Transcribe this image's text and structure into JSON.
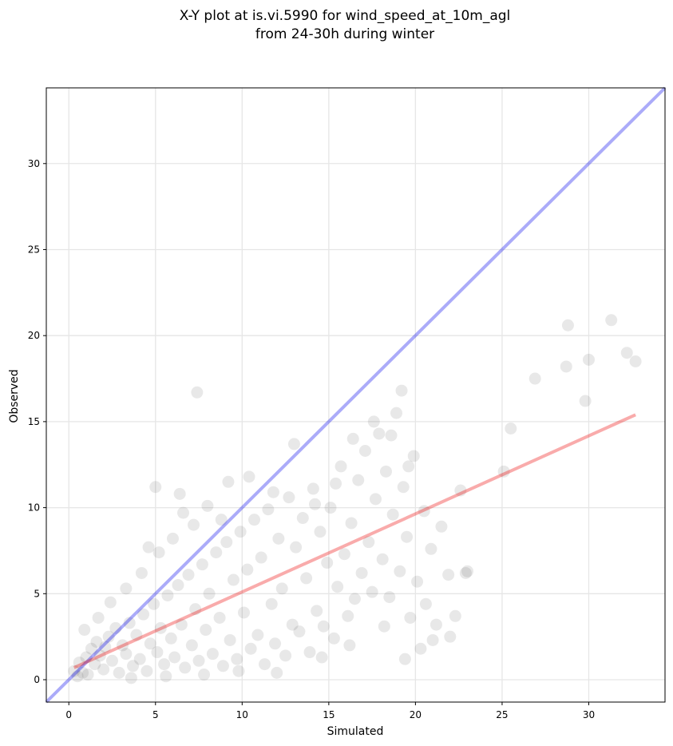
{
  "chart_data": {
    "type": "scatter",
    "title": "X-Y plot at is.vi.5990 for wind_speed_at_10m_agl",
    "subtitle": "from 24-30h during winter",
    "xlabel": "Simulated",
    "ylabel": "Observed",
    "xlim": [
      -1.3,
      34.4
    ],
    "ylim": [
      -1.3,
      34.4
    ],
    "xticks": [
      0,
      5,
      10,
      15,
      20,
      25,
      30
    ],
    "yticks": [
      0,
      5,
      10,
      15,
      20,
      25,
      30
    ],
    "grid": true,
    "point_color": "#000000",
    "point_opacity": 0.09,
    "identity_line": {
      "color": "#0000ee",
      "opacity": 0.33,
      "from": [
        -1.3,
        -1.3
      ],
      "to": [
        34.4,
        34.4
      ]
    },
    "fit_line": {
      "color": "#ee0000",
      "opacity": 0.33,
      "from": [
        0.3,
        0.7
      ],
      "to": [
        32.7,
        15.4
      ]
    },
    "points": [
      [
        0.3,
        0.5
      ],
      [
        0.5,
        0.2
      ],
      [
        0.6,
        1.0
      ],
      [
        0.8,
        0.4
      ],
      [
        1.0,
        1.3
      ],
      [
        1.1,
        0.3
      ],
      [
        1.3,
        1.8
      ],
      [
        1.5,
        0.9
      ],
      [
        1.6,
        2.2
      ],
      [
        1.8,
        1.4
      ],
      [
        2.0,
        0.6
      ],
      [
        2.1,
        1.9
      ],
      [
        2.3,
        2.5
      ],
      [
        2.5,
        1.1
      ],
      [
        2.7,
        3.0
      ],
      [
        2.9,
        0.4
      ],
      [
        3.1,
        2.0
      ],
      [
        3.3,
        1.5
      ],
      [
        3.5,
        3.3
      ],
      [
        3.7,
        0.8
      ],
      [
        3.9,
        2.6
      ],
      [
        4.1,
        1.2
      ],
      [
        4.3,
        3.8
      ],
      [
        4.5,
        0.5
      ],
      [
        4.7,
        2.1
      ],
      [
        4.9,
        4.4
      ],
      [
        5.1,
        1.6
      ],
      [
        5.3,
        3.0
      ],
      [
        5.5,
        0.9
      ],
      [
        5.7,
        4.9
      ],
      [
        5.9,
        2.4
      ],
      [
        6.1,
        1.3
      ],
      [
        6.3,
        5.5
      ],
      [
        6.5,
        3.2
      ],
      [
        6.7,
        0.7
      ],
      [
        6.9,
        6.1
      ],
      [
        7.1,
        2.0
      ],
      [
        7.3,
        4.1
      ],
      [
        7.5,
        1.1
      ],
      [
        7.7,
        6.7
      ],
      [
        7.9,
        2.9
      ],
      [
        8.1,
        5.0
      ],
      [
        8.3,
        1.5
      ],
      [
        8.5,
        7.4
      ],
      [
        8.7,
        3.6
      ],
      [
        8.9,
        0.8
      ],
      [
        9.1,
        8.0
      ],
      [
        9.3,
        2.3
      ],
      [
        9.5,
        5.8
      ],
      [
        9.7,
        1.2
      ],
      [
        9.9,
        8.6
      ],
      [
        10.1,
        3.9
      ],
      [
        10.3,
        6.4
      ],
      [
        10.5,
        1.8
      ],
      [
        10.7,
        9.3
      ],
      [
        10.9,
        2.6
      ],
      [
        11.1,
        7.1
      ],
      [
        11.3,
        0.9
      ],
      [
        11.5,
        9.9
      ],
      [
        11.7,
        4.4
      ],
      [
        11.9,
        2.1
      ],
      [
        12.1,
        8.2
      ],
      [
        12.3,
        5.3
      ],
      [
        12.5,
        1.4
      ],
      [
        12.7,
        10.6
      ],
      [
        12.9,
        3.2
      ],
      [
        13.1,
        7.7
      ],
      [
        13.3,
        2.8
      ],
      [
        13.5,
        9.4
      ],
      [
        13.7,
        5.9
      ],
      [
        13.9,
        1.6
      ],
      [
        14.1,
        11.1
      ],
      [
        14.3,
        4.0
      ],
      [
        14.5,
        8.6
      ],
      [
        14.7,
        3.1
      ],
      [
        14.9,
        6.8
      ],
      [
        15.1,
        10.0
      ],
      [
        15.3,
        2.4
      ],
      [
        15.5,
        5.4
      ],
      [
        15.7,
        12.4
      ],
      [
        15.9,
        7.3
      ],
      [
        16.1,
        3.7
      ],
      [
        16.3,
        9.1
      ],
      [
        16.5,
        4.7
      ],
      [
        16.7,
        11.6
      ],
      [
        16.9,
        6.2
      ],
      [
        17.1,
        13.3
      ],
      [
        17.3,
        8.0
      ],
      [
        17.5,
        5.1
      ],
      [
        17.7,
        10.5
      ],
      [
        17.9,
        14.3
      ],
      [
        18.1,
        7.0
      ],
      [
        18.3,
        12.1
      ],
      [
        18.5,
        4.8
      ],
      [
        18.7,
        9.6
      ],
      [
        18.9,
        15.5
      ],
      [
        19.1,
        6.3
      ],
      [
        19.3,
        11.2
      ],
      [
        19.5,
        8.3
      ],
      [
        19.7,
        3.6
      ],
      [
        19.9,
        13.0
      ],
      [
        20.1,
        5.7
      ],
      [
        20.3,
        1.8
      ],
      [
        20.5,
        9.8
      ],
      [
        20.9,
        7.6
      ],
      [
        21.2,
        3.2
      ],
      [
        21.5,
        8.9
      ],
      [
        21.9,
        6.1
      ],
      [
        22.3,
        3.7
      ],
      [
        22.6,
        11.0
      ],
      [
        22.9,
        6.2
      ],
      [
        25.1,
        12.1
      ],
      [
        25.5,
        14.6
      ],
      [
        26.9,
        17.5
      ],
      [
        28.7,
        18.2
      ],
      [
        28.8,
        20.6
      ],
      [
        29.8,
        16.2
      ],
      [
        30.0,
        18.6
      ],
      [
        31.3,
        20.9
      ],
      [
        32.2,
        19.0
      ],
      [
        32.7,
        18.5
      ],
      [
        7.4,
        16.7
      ],
      [
        5.0,
        11.2
      ],
      [
        6.4,
        10.8
      ],
      [
        9.2,
        11.5
      ],
      [
        0.9,
        2.9
      ],
      [
        1.7,
        3.6
      ],
      [
        2.4,
        4.5
      ],
      [
        3.3,
        5.3
      ],
      [
        4.2,
        6.2
      ],
      [
        5.2,
        7.4
      ],
      [
        6.0,
        8.2
      ],
      [
        7.2,
        9.0
      ],
      [
        8.0,
        10.1
      ],
      [
        8.8,
        9.3
      ],
      [
        3.6,
        0.1
      ],
      [
        5.6,
        0.2
      ],
      [
        7.8,
        0.3
      ],
      [
        9.8,
        0.5
      ],
      [
        12.0,
        0.4
      ],
      [
        14.6,
        1.3
      ],
      [
        16.2,
        2.0
      ],
      [
        18.2,
        3.1
      ],
      [
        19.4,
        1.2
      ],
      [
        22.0,
        2.5
      ],
      [
        20.6,
        4.4
      ],
      [
        21.0,
        2.3
      ],
      [
        23.0,
        6.3
      ],
      [
        4.6,
        7.7
      ],
      [
        6.6,
        9.7
      ],
      [
        10.4,
        11.8
      ],
      [
        11.8,
        10.9
      ],
      [
        13.0,
        13.7
      ],
      [
        14.2,
        10.2
      ],
      [
        15.4,
        11.4
      ],
      [
        16.4,
        14.0
      ],
      [
        17.6,
        15.0
      ],
      [
        18.6,
        14.2
      ],
      [
        19.2,
        16.8
      ],
      [
        19.6,
        12.4
      ]
    ]
  }
}
